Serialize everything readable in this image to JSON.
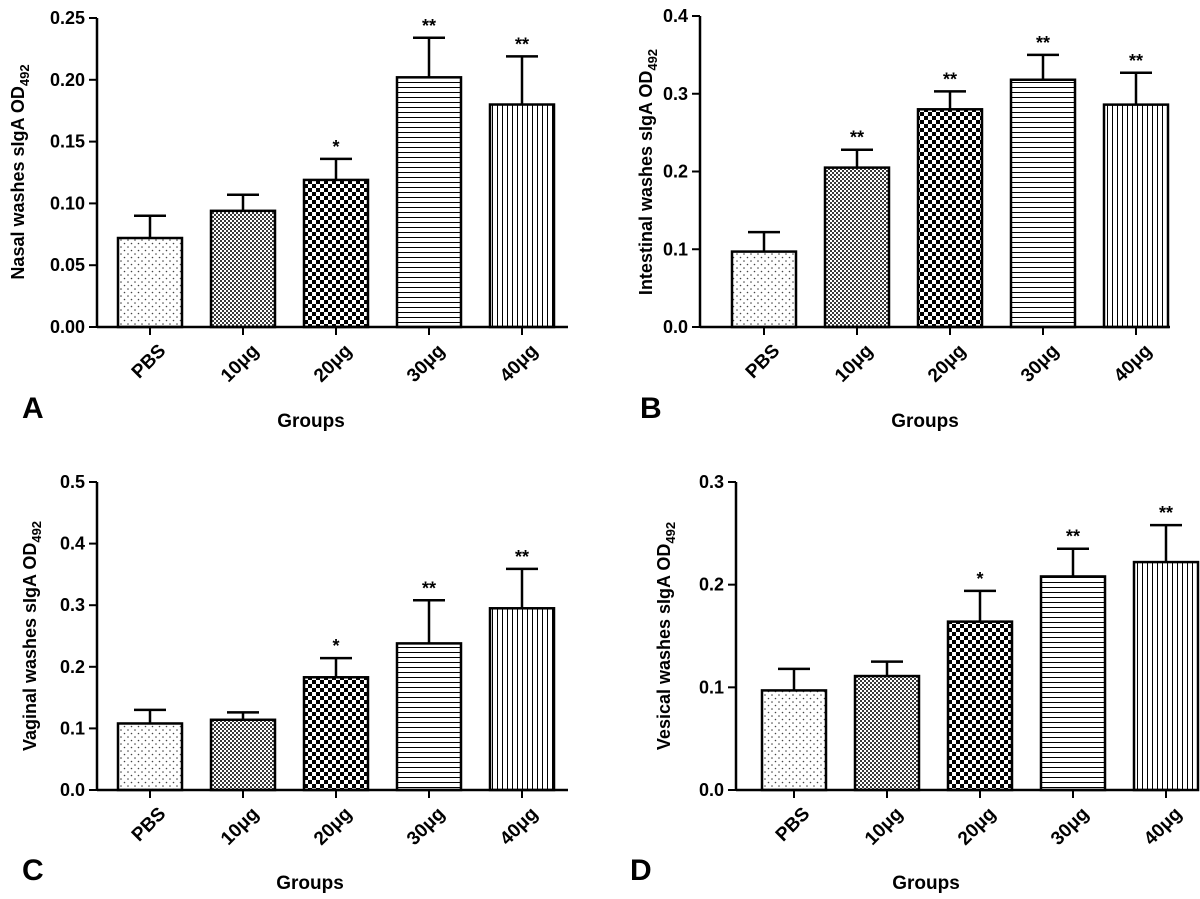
{
  "chart_data": [
    {
      "type": "bar",
      "panel_label": "A",
      "ylabel_main": "Nasal washes sIgA OD",
      "ylabel_sub": "492",
      "xlabel": "Groups",
      "categories": [
        "PBS",
        "10μg",
        "20μg",
        "30μg",
        "40μg"
      ],
      "values": [
        0.072,
        0.094,
        0.119,
        0.202,
        0.18
      ],
      "errors": [
        0.018,
        0.013,
        0.017,
        0.032,
        0.039
      ],
      "significance": [
        "",
        "",
        "*",
        "**",
        "**"
      ],
      "ylim": [
        0,
        0.25
      ],
      "yticks": [
        "0.00",
        "0.05",
        "0.10",
        "0.15",
        "0.20",
        "0.25"
      ],
      "patterns": [
        "dots",
        "checker-fine",
        "checker",
        "hlines",
        "vlines"
      ]
    },
    {
      "type": "bar",
      "panel_label": "B",
      "ylabel_main": "Intestinal washes sIgA OD",
      "ylabel_sub": "492",
      "xlabel": "Groups",
      "categories": [
        "PBS",
        "10μg",
        "20μg",
        "30μg",
        "40μg"
      ],
      "values": [
        0.097,
        0.205,
        0.28,
        0.318,
        0.286
      ],
      "errors": [
        0.025,
        0.023,
        0.023,
        0.032,
        0.041
      ],
      "significance": [
        "",
        "**",
        "**",
        "**",
        "**"
      ],
      "ylim": [
        0,
        0.4
      ],
      "yticks": [
        "0.0",
        "0.1",
        "0.2",
        "0.3",
        "0.4"
      ],
      "patterns": [
        "dots",
        "checker-fine",
        "checker",
        "hlines",
        "vlines"
      ]
    },
    {
      "type": "bar",
      "panel_label": "C",
      "ylabel_main": "Vaginal washes sIgA OD",
      "ylabel_sub": "492",
      "xlabel": "Groups",
      "categories": [
        "PBS",
        "10μg",
        "20μg",
        "30μg",
        "40μg"
      ],
      "values": [
        0.108,
        0.114,
        0.183,
        0.238,
        0.295
      ],
      "errors": [
        0.022,
        0.012,
        0.031,
        0.07,
        0.064
      ],
      "significance": [
        "",
        "",
        "*",
        "**",
        "**"
      ],
      "ylim": [
        0,
        0.5
      ],
      "yticks": [
        "0.0",
        "0.1",
        "0.2",
        "0.3",
        "0.4",
        "0.5"
      ],
      "patterns": [
        "dots",
        "checker-fine",
        "checker",
        "hlines",
        "vlines"
      ]
    },
    {
      "type": "bar",
      "panel_label": "D",
      "ylabel_main": "Vesical washes sIgA OD",
      "ylabel_sub": "492",
      "xlabel": "Groups",
      "categories": [
        "PBS",
        "10μg",
        "20μg",
        "30μg",
        "40μg"
      ],
      "values": [
        0.097,
        0.111,
        0.164,
        0.208,
        0.222
      ],
      "errors": [
        0.021,
        0.014,
        0.03,
        0.027,
        0.036
      ],
      "significance": [
        "",
        "",
        "*",
        "**",
        "**"
      ],
      "ylim": [
        0,
        0.3
      ],
      "yticks": [
        "0.0",
        "0.1",
        "0.2",
        "0.3"
      ],
      "patterns": [
        "dots",
        "checker-fine",
        "checker",
        "hlines",
        "vlines"
      ]
    }
  ]
}
